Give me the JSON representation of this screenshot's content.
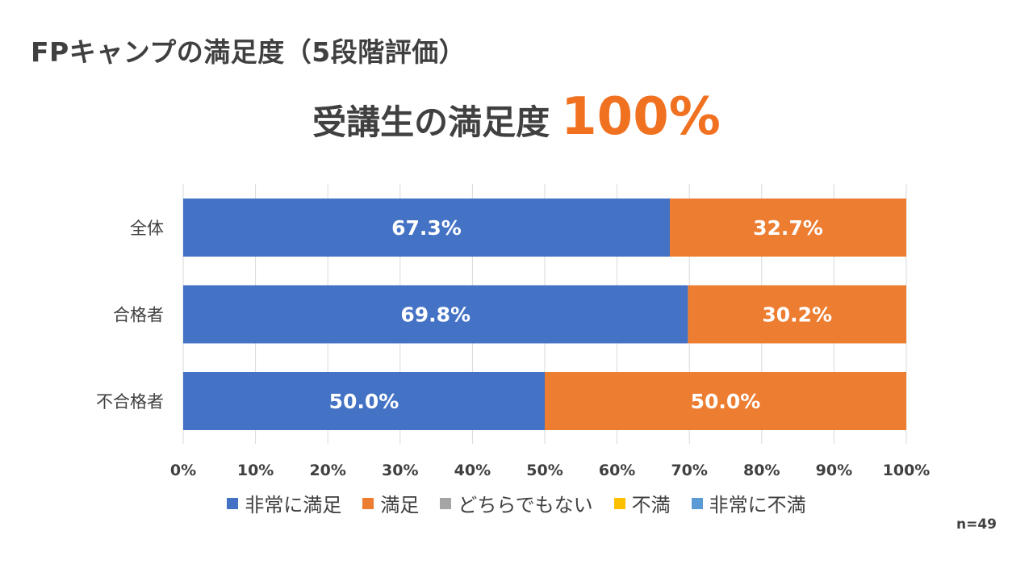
{
  "page": {
    "title": "FPキャンプの満足度（5段階評価）",
    "headline_text": "受講生の満足度",
    "headline_value": "100%",
    "sample_note": "n=49"
  },
  "colors": {
    "very_satisfied": "#4472c4",
    "satisfied": "#ed7d31",
    "neutral": "#a5a5a5",
    "dissatisfied": "#ffc000",
    "very_dissatisfied": "#5b9bd5",
    "accent": "#f07120",
    "text": "#404040",
    "grid": "#d9d9d9"
  },
  "legend": {
    "items": [
      {
        "label": "非常に満足",
        "color": "#4472c4"
      },
      {
        "label": "満足",
        "color": "#ed7d31"
      },
      {
        "label": "どちらでもない",
        "color": "#a5a5a5"
      },
      {
        "label": "不満",
        "color": "#ffc000"
      },
      {
        "label": "非常に不満",
        "color": "#5b9bd5"
      }
    ]
  },
  "chart_data": {
    "type": "bar",
    "orientation": "horizontal",
    "stacked": true,
    "title": "受講生の満足度 100%",
    "categories": [
      "全体",
      "合格者",
      "不合格者"
    ],
    "series": [
      {
        "name": "非常に満足",
        "color": "#4472c4",
        "values": [
          67.3,
          69.8,
          50.0
        ],
        "labels": [
          "67.3%",
          "69.8%",
          "50.0%"
        ]
      },
      {
        "name": "満足",
        "color": "#ed7d31",
        "values": [
          32.7,
          30.2,
          50.0
        ],
        "labels": [
          "32.7%",
          "30.2%",
          "50.0%"
        ]
      },
      {
        "name": "どちらでもない",
        "color": "#a5a5a5",
        "values": [
          0,
          0,
          0
        ],
        "labels": [
          "",
          "",
          ""
        ]
      },
      {
        "name": "不満",
        "color": "#ffc000",
        "values": [
          0,
          0,
          0
        ],
        "labels": [
          "",
          "",
          ""
        ]
      },
      {
        "name": "非常に不満",
        "color": "#5b9bd5",
        "values": [
          0,
          0,
          0
        ],
        "labels": [
          "",
          "",
          ""
        ]
      }
    ],
    "xlim": [
      0,
      100
    ],
    "xticks": [
      "0%",
      "10%",
      "20%",
      "30%",
      "40%",
      "50%",
      "60%",
      "70%",
      "80%",
      "90%",
      "100%"
    ],
    "grid": true,
    "legend_position": "bottom",
    "xlabel": "",
    "ylabel": ""
  }
}
